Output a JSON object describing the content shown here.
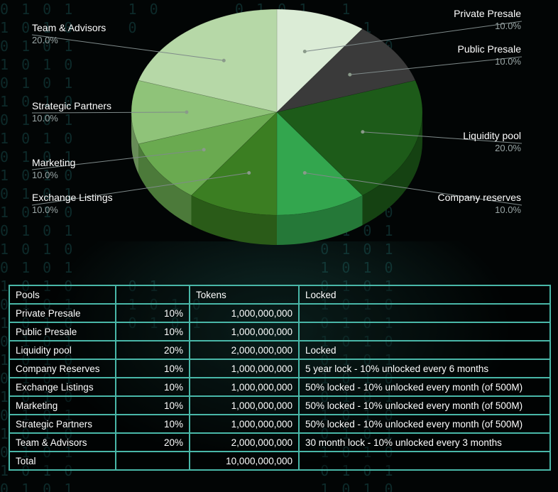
{
  "chart_data": {
    "type": "pie",
    "slices": [
      {
        "label": "Private Presale",
        "value": 10,
        "display": "10.0%",
        "color": "#dbecd6"
      },
      {
        "label": "Public Presale",
        "value": 10,
        "display": "10.0%",
        "color": "#3a3a3a"
      },
      {
        "label": "Liquidity pool",
        "value": 20,
        "display": "20.0%",
        "color": "#1d5b19"
      },
      {
        "label": "Company reserves",
        "value": 10,
        "display": "10.0%",
        "color": "#33a64e"
      },
      {
        "label": "Exchange Listings",
        "value": 10,
        "display": "10.0%",
        "color": "#3b7e22"
      },
      {
        "label": "Marketing",
        "value": 10,
        "display": "10.0%",
        "color": "#6aaa50"
      },
      {
        "label": "Strategic Partners",
        "value": 10,
        "display": "10.0%",
        "color": "#8fc379"
      },
      {
        "label": "Team & Advisors",
        "value": 20,
        "display": "20.0%",
        "color": "#b6d8a7"
      }
    ]
  },
  "table": {
    "header": {
      "pools": "Pools",
      "pct": "",
      "tokens": "Tokens",
      "locked": "Locked"
    },
    "rows": [
      {
        "pool": "Private Presale",
        "pct": "10%",
        "tokens": "1,000,000,000",
        "locked": ""
      },
      {
        "pool": "Public Presale",
        "pct": "10%",
        "tokens": "1,000,000,000",
        "locked": ""
      },
      {
        "pool": "Liquidity pool",
        "pct": "20%",
        "tokens": "2,000,000,000",
        "locked": "Locked"
      },
      {
        "pool": "Company Reserves",
        "pct": "10%",
        "tokens": "1,000,000,000",
        "locked": "5  year  lock - 10% unlocked every 6 months"
      },
      {
        "pool": "Exchange Listings",
        "pct": "10%",
        "tokens": "1,000,000,000",
        "locked": "50% locked - 10%  unlocked every month (of 500M)"
      },
      {
        "pool": "Marketing",
        "pct": "10%",
        "tokens": "1,000,000,000",
        "locked": "50% locked - 10% unlocked every month (of 500M)"
      },
      {
        "pool": "Strategic Partners",
        "pct": "10%",
        "tokens": "1,000,000,000",
        "locked": "50% locked - 10% unlocked every month (of 500M)"
      },
      {
        "pool": "Team & Advisors",
        "pct": "20%",
        "tokens": "2,000,000,000",
        "locked": "30 month lock - 10% unlocked every 3 months"
      }
    ],
    "total": {
      "pool": "Total",
      "pct": "",
      "tokens": "10,000,000,000",
      "locked": ""
    }
  },
  "colors": {
    "table_border": "#49b7a8",
    "background": "#020505",
    "label_line": "#7f8a8a"
  }
}
